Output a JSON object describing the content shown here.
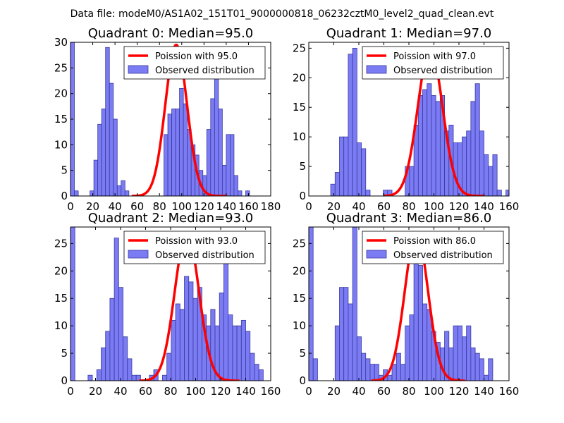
{
  "figure_title": "Data file: modeM0/AS1A02_151T01_9000000818_06232cztM0_level2_quad_clean.evt",
  "colors": {
    "bar_fill": "#7b7bf4",
    "bar_edge": "#3a3a9e",
    "curve": "#ff0000"
  },
  "chart_data": [
    {
      "type": "bar",
      "title": "Quadrant 0: Median=95.0",
      "xlim": [
        0,
        180
      ],
      "ylim": [
        0,
        30
      ],
      "xticks": [
        "0",
        "20",
        "40",
        "60",
        "80",
        "100",
        "120",
        "140",
        "160",
        "180"
      ],
      "yticks": [
        "0",
        "5",
        "10",
        "15",
        "20",
        "25",
        "30"
      ],
      "legend": {
        "curve_label": "Poission with 95.0",
        "bar_label": "Observed distribution",
        "location": "upper-right"
      },
      "bin_width": 3.5,
      "bars": [
        [
          0,
          30
        ],
        [
          3.5,
          1
        ],
        [
          17.5,
          1
        ],
        [
          21,
          7
        ],
        [
          24.5,
          14
        ],
        [
          28,
          17
        ],
        [
          31.5,
          29
        ],
        [
          35,
          22
        ],
        [
          38.5,
          15
        ],
        [
          42,
          2
        ],
        [
          45.5,
          3
        ],
        [
          49,
          1
        ],
        [
          84,
          12
        ],
        [
          87.5,
          16
        ],
        [
          91,
          17
        ],
        [
          94.5,
          17
        ],
        [
          98,
          21
        ],
        [
          101.5,
          18
        ],
        [
          105,
          13
        ],
        [
          108.5,
          10
        ],
        [
          112,
          8
        ],
        [
          115.5,
          5
        ],
        [
          119,
          4
        ],
        [
          122.5,
          13
        ],
        [
          126,
          19
        ],
        [
          129.5,
          23
        ],
        [
          133,
          17
        ],
        [
          136.5,
          6
        ],
        [
          140,
          12
        ],
        [
          143.5,
          12
        ],
        [
          147,
          4
        ],
        [
          150.5,
          1
        ],
        [
          157.5,
          1
        ]
      ],
      "poisson_mean": 95,
      "curve_peak": 29.5,
      "curve_range": [
        55,
        140
      ]
    },
    {
      "type": "bar",
      "title": "Quadrant 1: Median=97.0",
      "xlim": [
        0,
        160
      ],
      "ylim": [
        0,
        26
      ],
      "xticks": [
        "0",
        "20",
        "40",
        "60",
        "80",
        "100",
        "120",
        "140",
        "160"
      ],
      "yticks": [
        "0",
        "5",
        "10",
        "15",
        "20",
        "25"
      ],
      "legend": {
        "curve_label": "Poission with 97.0",
        "bar_label": "Observed distribution",
        "location": "upper-right"
      },
      "bin_width": 3.5,
      "bars": [
        [
          17.5,
          2
        ],
        [
          21,
          4
        ],
        [
          24.5,
          10
        ],
        [
          28,
          10
        ],
        [
          31.5,
          24
        ],
        [
          35,
          25
        ],
        [
          38.5,
          9
        ],
        [
          42,
          8
        ],
        [
          45.5,
          1
        ],
        [
          59.5,
          1
        ],
        [
          63,
          1
        ],
        [
          77,
          5
        ],
        [
          80.5,
          5
        ],
        [
          84,
          12
        ],
        [
          87.5,
          17
        ],
        [
          91,
          18
        ],
        [
          94.5,
          19
        ],
        [
          98,
          17
        ],
        [
          101.5,
          16
        ],
        [
          105,
          17
        ],
        [
          108.5,
          11
        ],
        [
          112,
          12
        ],
        [
          115.5,
          9
        ],
        [
          119,
          9
        ],
        [
          122.5,
          10
        ],
        [
          126,
          11
        ],
        [
          129.5,
          16
        ],
        [
          133,
          19
        ],
        [
          136.5,
          11
        ],
        [
          140,
          7
        ],
        [
          143.5,
          5
        ],
        [
          147,
          7
        ],
        [
          150.5,
          1
        ],
        [
          157.5,
          1
        ]
      ],
      "poisson_mean": 97,
      "curve_peak": 25,
      "curve_range": [
        60,
        140
      ]
    },
    {
      "type": "bar",
      "title": "Quadrant 2: Median=93.0",
      "xlim": [
        0,
        160
      ],
      "ylim": [
        0,
        28
      ],
      "xticks": [
        "0",
        "20",
        "40",
        "60",
        "80",
        "100",
        "120",
        "140",
        "160"
      ],
      "yticks": [
        "0",
        "5",
        "10",
        "15",
        "20",
        "25"
      ],
      "legend": {
        "curve_label": "Poission with 93.0",
        "bar_label": "Observed distribution",
        "location": "upper-right"
      },
      "bin_width": 3.5,
      "bars": [
        [
          0,
          28
        ],
        [
          14,
          1
        ],
        [
          21,
          2
        ],
        [
          24.5,
          6
        ],
        [
          28,
          9
        ],
        [
          31.5,
          15
        ],
        [
          35,
          26
        ],
        [
          38.5,
          17
        ],
        [
          42,
          8
        ],
        [
          45.5,
          4
        ],
        [
          49,
          1
        ],
        [
          52.5,
          1
        ],
        [
          63,
          1
        ],
        [
          66.5,
          2
        ],
        [
          73.5,
          1
        ],
        [
          77,
          5
        ],
        [
          80.5,
          11
        ],
        [
          84,
          14
        ],
        [
          87.5,
          13
        ],
        [
          91,
          19
        ],
        [
          94.5,
          18
        ],
        [
          98,
          15
        ],
        [
          101.5,
          17
        ],
        [
          105,
          12
        ],
        [
          108.5,
          10
        ],
        [
          112,
          13
        ],
        [
          115.5,
          10
        ],
        [
          119,
          16
        ],
        [
          122.5,
          23
        ],
        [
          126,
          12
        ],
        [
          129.5,
          10
        ],
        [
          133,
          10
        ],
        [
          136.5,
          11
        ],
        [
          140,
          9
        ],
        [
          143.5,
          5
        ],
        [
          147,
          3
        ],
        [
          150.5,
          2
        ]
      ],
      "poisson_mean": 93,
      "curve_peak": 27,
      "curve_range": [
        55,
        135
      ]
    },
    {
      "type": "bar",
      "title": "Quadrant 3: Median=86.0",
      "xlim": [
        0,
        160
      ],
      "ylim": [
        0,
        28
      ],
      "xticks": [
        "0",
        "20",
        "40",
        "60",
        "80",
        "100",
        "120",
        "140",
        "160"
      ],
      "yticks": [
        "0",
        "5",
        "10",
        "15",
        "20",
        "25"
      ],
      "legend": {
        "curve_label": "Poission with 86.0",
        "bar_label": "Observed distribution",
        "location": "upper-right"
      },
      "bin_width": 3.5,
      "bars": [
        [
          0,
          28
        ],
        [
          3.5,
          4
        ],
        [
          21,
          10
        ],
        [
          24.5,
          17
        ],
        [
          28,
          17
        ],
        [
          31.5,
          14
        ],
        [
          35,
          28
        ],
        [
          38.5,
          8
        ],
        [
          42,
          5
        ],
        [
          45.5,
          4
        ],
        [
          49,
          3
        ],
        [
          52.5,
          3
        ],
        [
          56,
          1
        ],
        [
          59.5,
          2
        ],
        [
          63,
          1
        ],
        [
          66.5,
          3
        ],
        [
          70,
          5
        ],
        [
          73.5,
          3
        ],
        [
          77,
          10
        ],
        [
          80.5,
          12
        ],
        [
          84,
          22
        ],
        [
          87.5,
          21
        ],
        [
          91,
          14
        ],
        [
          94.5,
          13
        ],
        [
          98,
          9
        ],
        [
          101.5,
          7
        ],
        [
          105,
          6
        ],
        [
          108.5,
          9
        ],
        [
          112,
          6
        ],
        [
          115.5,
          10
        ],
        [
          119,
          10
        ],
        [
          122.5,
          8
        ],
        [
          126,
          10
        ],
        [
          129.5,
          6
        ],
        [
          133,
          5
        ],
        [
          136.5,
          4
        ],
        [
          140,
          1
        ],
        [
          143.5,
          4
        ]
      ],
      "poisson_mean": 86,
      "curve_peak": 27,
      "curve_range": [
        50,
        125
      ]
    }
  ]
}
